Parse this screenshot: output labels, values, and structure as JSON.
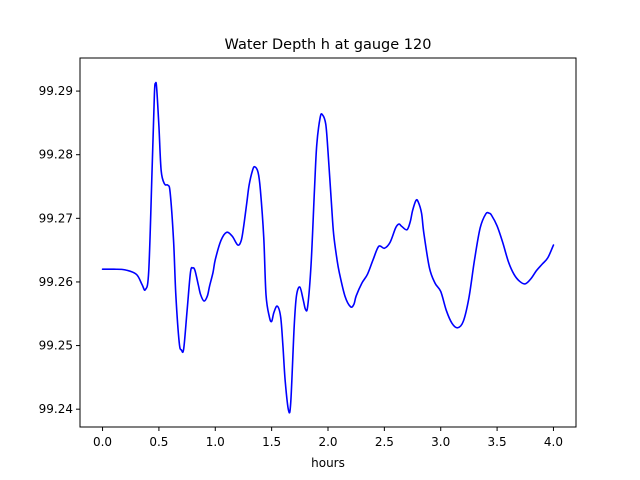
{
  "chart_data": {
    "type": "line",
    "title": "Water Depth h at gauge 120",
    "xlabel": "hours",
    "ylabel": "",
    "xlim": [
      -0.2,
      4.2
    ],
    "ylim": [
      99.2372,
      99.2952
    ],
    "xticks": [
      0.0,
      0.5,
      1.0,
      1.5,
      2.0,
      2.5,
      3.0,
      3.5,
      4.0
    ],
    "xtick_labels": [
      "0.0",
      "0.5",
      "1.0",
      "1.5",
      "2.0",
      "2.5",
      "3.0",
      "3.5",
      "4.0"
    ],
    "yticks": [
      99.24,
      99.25,
      99.26,
      99.27,
      99.28,
      99.29
    ],
    "ytick_labels": [
      "99.24",
      "99.25",
      "99.26",
      "99.27",
      "99.28",
      "99.29"
    ],
    "grid": false,
    "legend": "none",
    "series": [
      {
        "color": "#0000ff",
        "x": [
          0.0,
          0.1,
          0.2,
          0.3,
          0.35,
          0.38,
          0.41,
          0.44,
          0.46,
          0.47,
          0.48,
          0.5,
          0.52,
          0.55,
          0.58,
          0.6,
          0.63,
          0.65,
          0.68,
          0.7,
          0.72,
          0.75,
          0.78,
          0.8,
          0.82,
          0.85,
          0.87,
          0.9,
          0.93,
          0.95,
          0.98,
          1.0,
          1.05,
          1.1,
          1.15,
          1.2,
          1.23,
          1.25,
          1.28,
          1.3,
          1.33,
          1.35,
          1.38,
          1.4,
          1.43,
          1.45,
          1.48,
          1.5,
          1.52,
          1.55,
          1.58,
          1.6,
          1.62,
          1.65,
          1.67,
          1.7,
          1.72,
          1.75,
          1.78,
          1.8,
          1.82,
          1.85,
          1.88,
          1.9,
          1.93,
          1.95,
          1.98,
          2.0,
          2.03,
          2.05,
          2.08,
          2.1,
          2.15,
          2.2,
          2.23,
          2.25,
          2.3,
          2.35,
          2.4,
          2.45,
          2.5,
          2.55,
          2.6,
          2.63,
          2.65,
          2.7,
          2.73,
          2.75,
          2.78,
          2.8,
          2.83,
          2.85,
          2.9,
          2.95,
          3.0,
          3.05,
          3.1,
          3.15,
          3.2,
          3.25,
          3.3,
          3.35,
          3.4,
          3.43,
          3.45,
          3.5,
          3.55,
          3.6,
          3.65,
          3.7,
          3.75,
          3.8,
          3.85,
          3.9,
          3.95,
          4.0
        ],
        "y": [
          99.262,
          99.262,
          99.2619,
          99.2612,
          99.2596,
          99.2588,
          99.2618,
          99.278,
          99.2895,
          99.2912,
          99.2905,
          99.2845,
          99.2775,
          99.2754,
          99.2752,
          99.274,
          99.2665,
          99.258,
          99.2505,
          99.2493,
          99.2495,
          99.2555,
          99.2615,
          99.2622,
          99.2618,
          99.2595,
          99.258,
          99.257,
          99.2578,
          99.2594,
          99.2615,
          99.2635,
          99.2665,
          99.2678,
          99.2672,
          99.2658,
          99.2665,
          99.2685,
          99.2725,
          99.2752,
          99.2775,
          99.2781,
          99.2772,
          99.2745,
          99.267,
          99.258,
          99.2545,
          99.2538,
          99.2552,
          99.2562,
          99.2545,
          99.25,
          99.2445,
          99.2398,
          99.2412,
          99.253,
          99.2578,
          99.2592,
          99.2572,
          99.2557,
          99.2562,
          99.2628,
          99.2745,
          99.2815,
          99.2858,
          99.2863,
          99.2848,
          99.2805,
          99.2725,
          99.2675,
          99.2635,
          99.2615,
          99.2578,
          99.2561,
          99.2565,
          99.2578,
          99.2598,
          99.2612,
          99.2635,
          99.2656,
          99.2653,
          99.2662,
          99.2685,
          99.2691,
          99.2688,
          99.2682,
          99.2695,
          99.2712,
          99.2728,
          99.2726,
          99.2708,
          99.2677,
          99.2622,
          99.2598,
          99.2585,
          99.2555,
          99.2535,
          99.2528,
          99.2538,
          99.2575,
          99.2635,
          99.2685,
          99.2707,
          99.2708,
          99.2705,
          99.2688,
          99.2662,
          99.2632,
          99.2612,
          99.2601,
          99.2597,
          99.2605,
          99.2618,
          99.2628,
          99.2638,
          99.2658
        ]
      }
    ]
  }
}
